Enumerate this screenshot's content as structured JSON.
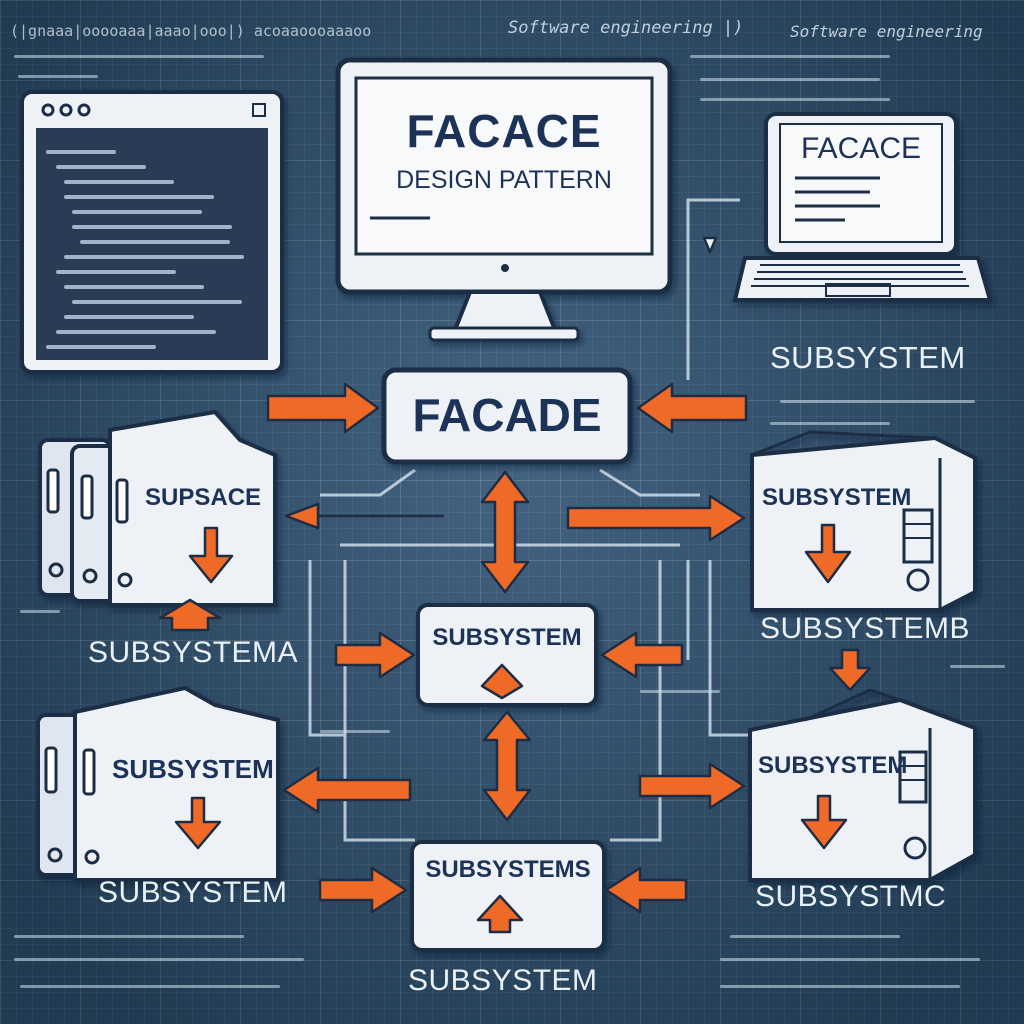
{
  "header": {
    "text_left": "(|gnaaa|ooooaaa|aaao|ooo|) acoaaoooaaaoo",
    "text_center": "Software engineering |)",
    "text_right": "Software engineering"
  },
  "monitor": {
    "title": "FACACE",
    "subtitle": "DESIGN PATTERN"
  },
  "laptop": {
    "title": "FACACE"
  },
  "facade": {
    "label": "FACADE"
  },
  "nodes": {
    "top_right_label": "SUBSYSTEM",
    "left_top_box": "SUPSACE",
    "left_top_label": "SUBSYSTEMA",
    "right_top_box": "SUBSYSTEM",
    "right_top_label": "SUBSYSTEMB",
    "center_box": "SUBSYSTEM",
    "left_bottom_box": "SUBSYSTEM",
    "left_bottom_label": "SUBSYSTEM",
    "right_bottom_box": "SUBSYSTEM",
    "right_bottom_label": "SUBSYSTMC",
    "bottom_box": "SUBSYSTEMS",
    "bottom_label": "SUBSYSTEM"
  },
  "colors": {
    "background": "#2e5273",
    "arrow": "#ee6a26",
    "box_fill": "#eef2f7",
    "box_text": "#1c3256",
    "outline": "#1e2d44"
  }
}
